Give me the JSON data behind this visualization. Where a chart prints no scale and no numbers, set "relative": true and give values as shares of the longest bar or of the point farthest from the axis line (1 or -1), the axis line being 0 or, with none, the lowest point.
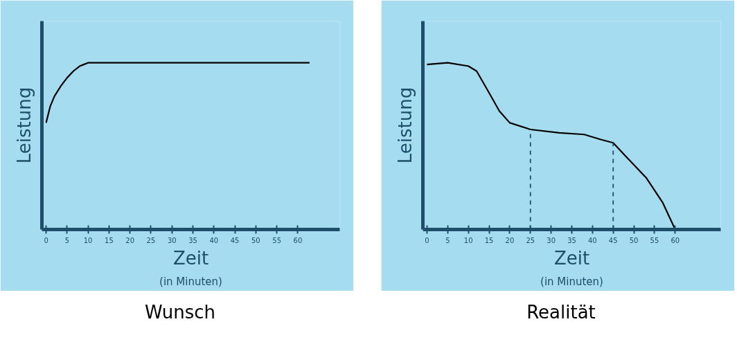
{
  "chart_data": [
    {
      "type": "line",
      "title": "Wunsch",
      "xlabel": "Zeit",
      "ylabel": "Leistung",
      "annotations": [
        "(in Minuten)"
      ],
      "relative": true,
      "xlim": [
        -1,
        70
      ],
      "xticks": [
        0,
        5,
        10,
        15,
        20,
        25,
        30,
        35,
        40,
        45,
        50,
        55,
        60
      ],
      "grid": false,
      "marker": "none",
      "line_style": "solid",
      "series": [
        {
          "color": "#000000",
          "x": [
            0,
            1,
            2,
            3.5,
            5,
            6.5,
            8,
            9,
            10,
            20,
            30,
            40,
            50,
            62.8
          ],
          "values": [
            0.64,
            0.74,
            0.8,
            0.86,
            0.91,
            0.95,
            0.98,
            0.99,
            1,
            1,
            1,
            1,
            1,
            1
          ]
        }
      ]
    },
    {
      "type": "line",
      "title": "Realität",
      "xlabel": "Zeit",
      "ylabel": "Leistung",
      "annotations": [
        "(in Minuten)"
      ],
      "relative": true,
      "xlim": [
        -1,
        71
      ],
      "xticks": [
        0,
        5,
        10,
        15,
        20,
        25,
        30,
        35,
        40,
        45,
        50,
        55,
        60
      ],
      "grid": false,
      "marker": "none",
      "line_style": "solid",
      "ref_lines": [
        {
          "axis": "x",
          "value": 25,
          "color": "#1f4e6b",
          "line_style": "dashed"
        },
        {
          "axis": "x",
          "value": 45,
          "color": "#1f4e6b",
          "line_style": "dashed"
        }
      ],
      "series": [
        {
          "color": "#000000",
          "x": [
            0,
            5,
            10,
            12,
            15,
            17.5,
            20,
            25,
            32,
            38,
            42,
            45,
            48,
            53,
            57,
            60
          ],
          "values": [
            0.99,
            1,
            0.98,
            0.95,
            0.82,
            0.71,
            0.64,
            0.6,
            0.58,
            0.57,
            0.54,
            0.52,
            0.44,
            0.31,
            0.16,
            0
          ]
        }
      ]
    }
  ]
}
